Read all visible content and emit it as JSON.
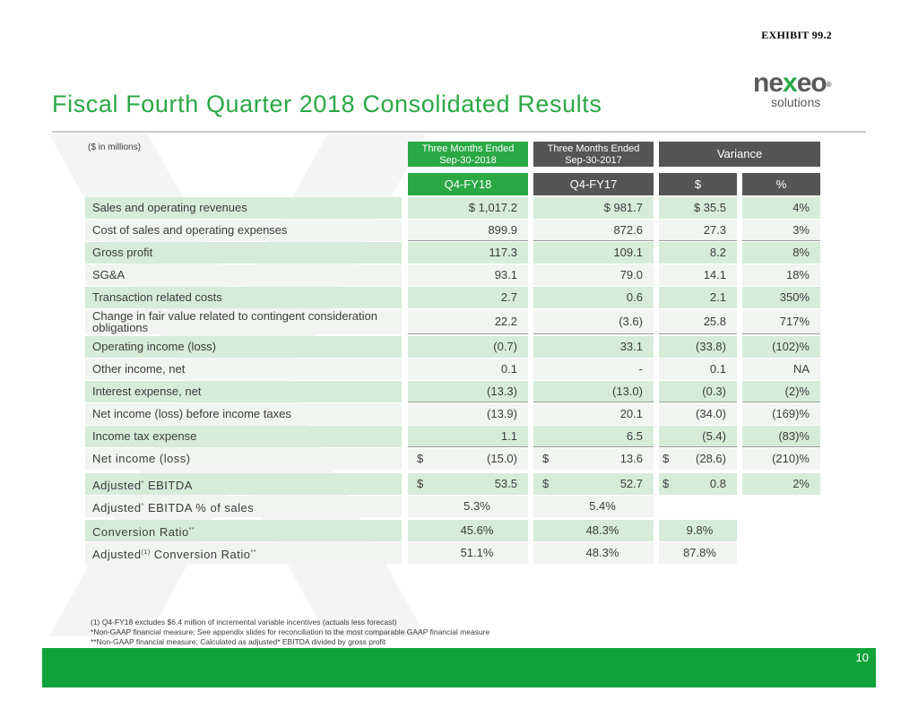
{
  "exhibit": "EXHIBIT 99.2",
  "logo": {
    "word_pre": "ne",
    "word_x": "x",
    "word_post": "eo",
    "mark": "®",
    "sub": "solutions"
  },
  "title": "Fiscal Fourth Quarter 2018 Consolidated Results",
  "units": "($ in millions)",
  "headers": {
    "col1_line1": "Three Months Ended",
    "col1_line2": "Sep-30-2018",
    "col2_line1": "Three Months Ended",
    "col2_line2": "Sep-30-2017",
    "variance": "Variance",
    "sub1": "Q4-FY18",
    "sub2": "Q4-FY17",
    "sub3": "$",
    "sub4": "%"
  },
  "rows": [
    {
      "label": "Sales and operating revenues",
      "q4fy18": "$ 1,017.2",
      "q4fy17": "$ 981.7",
      "var_d": "$  35.5",
      "var_p": "4%"
    },
    {
      "label": "Cost of sales and operating expenses",
      "q4fy18": "899.9",
      "q4fy17": "872.6",
      "var_d": "27.3",
      "var_p": "3%"
    },
    {
      "label": "Gross profit",
      "q4fy18": "117.3",
      "q4fy17": "109.1",
      "var_d": "8.2",
      "var_p": "8%"
    },
    {
      "label": "SG&A",
      "q4fy18": "93.1",
      "q4fy17": "79.0",
      "var_d": "14.1",
      "var_p": "18%"
    },
    {
      "label": "Transaction related costs",
      "q4fy18": "2.7",
      "q4fy17": "0.6",
      "var_d": "2.1",
      "var_p": "350%"
    },
    {
      "label_line1": "Change in fair value related to contingent consideration",
      "label_line2": "obligations",
      "q4fy18": "22.2",
      "q4fy17": "(3.6)",
      "var_d": "25.8",
      "var_p": "717%"
    },
    {
      "label": "Operating income (loss)",
      "q4fy18": "(0.7)",
      "q4fy17": "33.1",
      "var_d": "(33.8)",
      "var_p": "(102)%"
    },
    {
      "label": "Other income, net",
      "q4fy18": "0.1",
      "q4fy17": "-",
      "var_d": "0.1",
      "var_p": "NA"
    },
    {
      "label": "Interest expense, net",
      "q4fy18": "(13.3)",
      "q4fy17": "(13.0)",
      "var_d": "(0.3)",
      "var_p": "(2)%"
    },
    {
      "label": "Net income (loss) before income taxes",
      "q4fy18": "(13.9)",
      "q4fy17": "20.1",
      "var_d": "(34.0)",
      "var_p": "(169)%"
    },
    {
      "label": "Income tax expense",
      "q4fy18": "1.1",
      "q4fy17": "6.5",
      "var_d": "(5.4)",
      "var_p": "(83)%"
    },
    {
      "label": "Net income (loss)",
      "q4fy18_sym": "$",
      "q4fy18": "(15.0)",
      "q4fy17_sym": "$",
      "q4fy17": "13.6",
      "var_d_sym": "$",
      "var_d": "(28.6)",
      "var_p": "(210)%"
    },
    {
      "label_pre": "Adjusted",
      "label_sup": "*",
      "label_post": " EBITDA",
      "q4fy18_sym": "$",
      "q4fy18": "53.5",
      "q4fy17_sym": "$",
      "q4fy17": "52.7",
      "var_d_sym": "$",
      "var_d": "0.8",
      "var_p": "2%"
    },
    {
      "label_pre": "Adjusted",
      "label_sup": "*",
      "label_post": " EBITDA % of sales",
      "q4fy18": "5.3%",
      "q4fy17": "5.4%"
    },
    {
      "label_pre": "Conversion Ratio",
      "label_sup": "**",
      "label_post": "",
      "q4fy18": "45.6%",
      "q4fy17": "48.3%",
      "var_d": "9.8%"
    },
    {
      "label_pre": "Adjusted",
      "label_sup": "(1)",
      "label_post": " Conversion Ratio",
      "label_sup2": "**",
      "q4fy18": "51.1%",
      "q4fy17": "48.3%",
      "var_d": "87.8%"
    }
  ],
  "notes": [
    "(1) Q4-FY18 excludes $6.4 million of incremental variable incentives (actuals less forecast)",
    "*Non-GAAP financial measure; See appendix slides for reconciliation to the most comparable GAAP financial measure",
    "**Non-GAAP financial measure; Calculated as adjusted* EBITDA divided by gross profit"
  ],
  "page_number": "10",
  "colors": {
    "brand_green": "#2aa845",
    "header_gray": "#555555",
    "row_shade": "#d6ecd9",
    "footer_green": "#11a33a"
  }
}
